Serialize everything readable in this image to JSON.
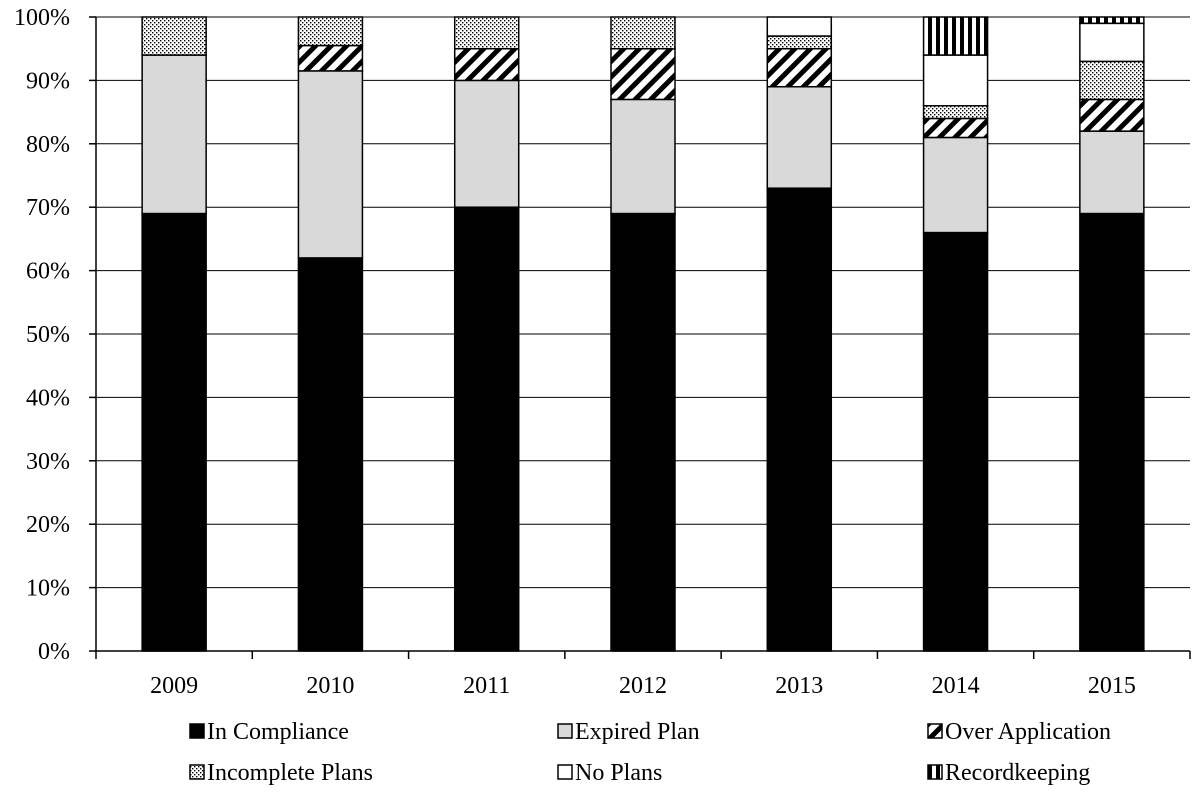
{
  "chart_data": {
    "type": "bar",
    "stacked": true,
    "normalized": true,
    "categories": [
      "2009",
      "2010",
      "2011",
      "2012",
      "2013",
      "2014",
      "2015"
    ],
    "series": [
      {
        "name": "In Compliance",
        "pattern": "solid-black",
        "values": [
          69,
          62,
          70,
          69,
          73,
          66,
          69
        ]
      },
      {
        "name": "Expired Plan",
        "pattern": "solid-light-gray",
        "values": [
          25,
          29.5,
          20,
          18,
          16,
          15,
          13
        ]
      },
      {
        "name": "Over Application",
        "pattern": "diagonal-hatch",
        "values": [
          0,
          4,
          5,
          8,
          6,
          3,
          5
        ]
      },
      {
        "name": "Incomplete Plans",
        "pattern": "dotted",
        "values": [
          6,
          4.5,
          5,
          5,
          2,
          2,
          6
        ]
      },
      {
        "name": "No Plans",
        "pattern": "solid-white",
        "values": [
          0,
          0,
          0,
          0,
          3,
          8,
          6
        ]
      },
      {
        "name": "Recordkeeping",
        "pattern": "vertical-stripes",
        "values": [
          0,
          0,
          0,
          0,
          0,
          6,
          1
        ]
      }
    ],
    "yticks": [
      "0%",
      "10%",
      "20%",
      "30%",
      "40%",
      "50%",
      "60%",
      "70%",
      "80%",
      "90%",
      "100%"
    ],
    "ylim": [
      0,
      100
    ],
    "grid": true,
    "legend_position": "bottom",
    "colors": {
      "solid-black": "#000000",
      "solid-light-gray": "#d9d9d9",
      "solid-white": "#ffffff",
      "stroke": "#000000"
    }
  }
}
